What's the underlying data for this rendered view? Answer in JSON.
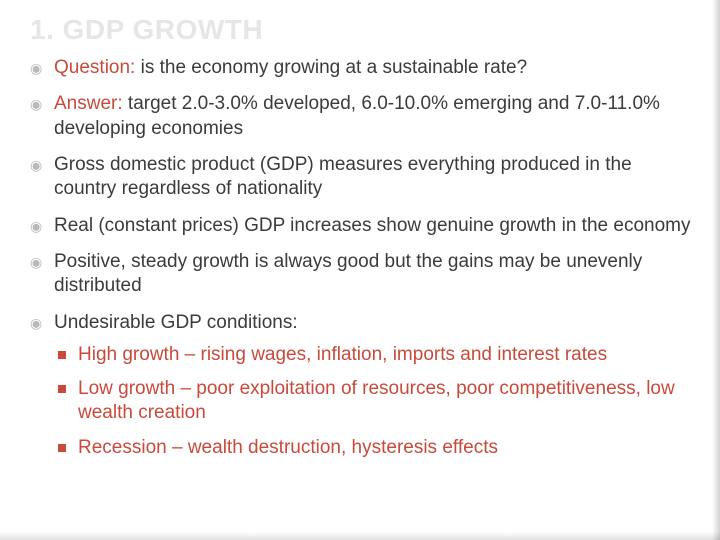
{
  "colors": {
    "title": "#e6e6e6",
    "body": "#3b3b3b",
    "accent": "#c94a3b",
    "bullet_outer": "#b9b9b9",
    "background": "#ffffff"
  },
  "title": "1. GDP GROWTH",
  "bullets": [
    {
      "label": "Question:",
      "text": " is the economy growing at a sustainable rate?",
      "labelColor": "accent"
    },
    {
      "label": "Answer:",
      "text": " target 2.0-3.0% developed, 6.0-10.0% emerging and 7.0-11.0% developing economies",
      "labelColor": "accent"
    },
    {
      "text": "Gross domestic product (GDP) measures everything produced in the country regardless of nationality"
    },
    {
      "text": "Real (constant prices) GDP increases show genuine growth in the economy"
    },
    {
      "text": "Positive, steady growth is always good but the gains may be unevenly distributed"
    },
    {
      "text": "Undesirable GDP conditions:",
      "sub": [
        "High growth – rising wages, inflation, imports and interest rates",
        "Low growth – poor exploitation of resources, poor competitiveness, low wealth creation",
        "Recession – wealth destruction, hysteresis effects"
      ],
      "subColor": "accent"
    }
  ]
}
